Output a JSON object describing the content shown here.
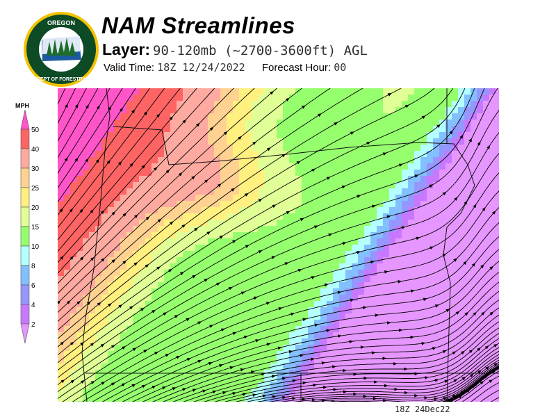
{
  "header": {
    "logo_text": "OREGON DEPARTMENT OF FORESTRY",
    "title": "NAM Streamlines",
    "layer_label": "Layer:",
    "layer_value": "90-120mb (~2700-3600ft) AGL",
    "valid_label": "Valid Time:",
    "valid_value": "18Z 12/24/2022",
    "forecast_label": "Forecast Hour:",
    "forecast_value": "00"
  },
  "legend": {
    "unit": "MPH",
    "ticks": [
      "50",
      "40",
      "30",
      "25",
      "20",
      "15",
      "10",
      "8",
      "6",
      "4",
      "2"
    ],
    "colors": [
      "#ff55c8",
      "#ff6464",
      "#ffaaa0",
      "#ffd292",
      "#fff080",
      "#e0ff96",
      "#96ff6e",
      "#b4ffff",
      "#82c0ff",
      "#9696ff",
      "#c878ff",
      "#e696ff"
    ]
  },
  "map": {
    "stamp": "18Z 24Dec22"
  }
}
